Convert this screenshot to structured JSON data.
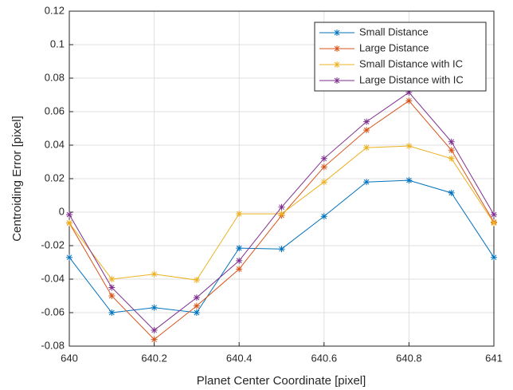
{
  "chart_data": {
    "type": "line",
    "x_label": "Planet Center Coordinate [pixel]",
    "y_label": "Centroiding Error [pixel]",
    "x": [
      640,
      640.1,
      640.2,
      640.3,
      640.4,
      640.5,
      640.6,
      640.7,
      640.8,
      640.9,
      641
    ],
    "series": [
      {
        "name": "Small Distance",
        "color": "#0072bd",
        "values": [
          -0.027,
          -0.06,
          -0.057,
          -0.06,
          -0.0215,
          -0.022,
          -0.0025,
          0.018,
          0.019,
          0.0115,
          -0.027
        ]
      },
      {
        "name": "Large Distance",
        "color": "#d95319",
        "values": [
          -0.0065,
          -0.05,
          -0.076,
          -0.056,
          -0.034,
          -0.002,
          0.027,
          0.049,
          0.0665,
          0.037,
          -0.006
        ]
      },
      {
        "name": "Small Distance with IC",
        "color": "#edb120",
        "values": [
          -0.0065,
          -0.04,
          -0.037,
          -0.0405,
          -0.001,
          -0.001,
          0.018,
          0.0385,
          0.0395,
          0.032,
          -0.0065
        ]
      },
      {
        "name": "Large Distance with IC",
        "color": "#7e2f8e",
        "values": [
          -0.0015,
          -0.045,
          -0.0705,
          -0.051,
          -0.029,
          0.003,
          0.032,
          0.054,
          0.0715,
          0.042,
          -0.0015
        ]
      }
    ],
    "xlim": [
      640,
      641
    ],
    "xticks": [
      640,
      640.2,
      640.4,
      640.6,
      640.8,
      641
    ],
    "ylim": [
      -0.08,
      0.12
    ],
    "yticks": [
      -0.08,
      -0.06,
      -0.04,
      -0.02,
      0,
      0.02,
      0.04,
      0.06,
      0.08,
      0.1,
      0.12
    ],
    "grid": true,
    "legend_position": "northeast",
    "marker": "asterisk"
  }
}
